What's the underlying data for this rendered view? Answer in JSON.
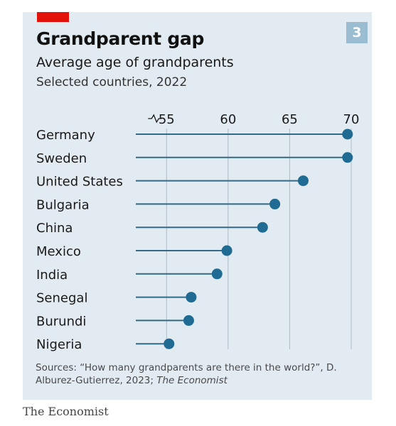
{
  "header": {
    "title": "Grandparent gap",
    "subtitle": "Average age of grandparents",
    "subtitle2": "Selected countries, 2022",
    "badge": "3"
  },
  "footer": {
    "source_prefix": "Sources: “How many grandparents are there in the world?”, D. Alburez-Gutierrez, 2023; ",
    "source_italic": "The Economist",
    "brand": "The Economist"
  },
  "colors": {
    "accent_red": "#e3120b",
    "dot": "#1f6b94",
    "stem": "#336a86",
    "gridline": "#aebcc6",
    "background": "#e1ebf1"
  },
  "chart_data": {
    "type": "dot",
    "title": "Grandparent gap",
    "subtitle": "Average age of grandparents",
    "axis": {
      "xlim": [
        52.5,
        70
      ],
      "ticks": [
        55,
        60,
        65,
        70
      ],
      "broken_axis_symbol": true,
      "position": "top"
    },
    "categories": [
      "Germany",
      "Sweden",
      "United States",
      "Bulgaria",
      "China",
      "Mexico",
      "India",
      "Senegal",
      "Burundi",
      "Nigeria"
    ],
    "values": [
      69.7,
      69.7,
      66.1,
      63.8,
      62.8,
      59.9,
      59.1,
      57.0,
      56.8,
      55.2
    ]
  }
}
